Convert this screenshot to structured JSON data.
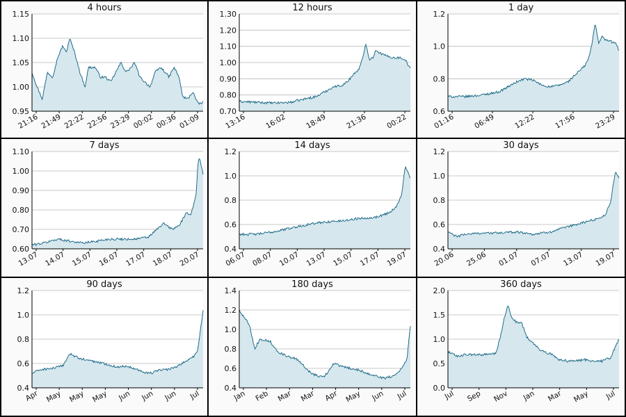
{
  "colors": {
    "line": "#0d5f7e",
    "fill": "#d6e7ee",
    "grid": "#b8b8b8",
    "frame": "#000000"
  },
  "chart_data": [
    {
      "type": "area",
      "title": "4 hours",
      "ylim": [
        0.95,
        1.15
      ],
      "yticks": [
        "0.95",
        "1.00",
        "1.05",
        "1.10",
        "1.15"
      ],
      "xticks": [
        "21:16",
        "21:49",
        "22:22",
        "22:56",
        "23:29",
        "00:02",
        "00:36",
        "01:09"
      ],
      "anchors": [
        [
          0,
          1.03
        ],
        [
          0.03,
          1.0
        ],
        [
          0.06,
          0.975
        ],
        [
          0.09,
          1.03
        ],
        [
          0.12,
          1.02
        ],
        [
          0.15,
          1.06
        ],
        [
          0.18,
          1.085
        ],
        [
          0.2,
          1.07
        ],
        [
          0.22,
          1.1
        ],
        [
          0.25,
          1.07
        ],
        [
          0.28,
          1.03
        ],
        [
          0.31,
          1.0
        ],
        [
          0.33,
          1.04
        ],
        [
          0.37,
          1.04
        ],
        [
          0.4,
          1.02
        ],
        [
          0.43,
          1.02
        ],
        [
          0.46,
          1.01
        ],
        [
          0.49,
          1.03
        ],
        [
          0.52,
          1.05
        ],
        [
          0.55,
          1.03
        ],
        [
          0.58,
          1.04
        ],
        [
          0.6,
          1.05
        ],
        [
          0.63,
          1.02
        ],
        [
          0.66,
          1.01
        ],
        [
          0.69,
          1.0
        ],
        [
          0.72,
          1.03
        ],
        [
          0.75,
          1.04
        ],
        [
          0.78,
          1.03
        ],
        [
          0.8,
          1.02
        ],
        [
          0.83,
          1.04
        ],
        [
          0.86,
          1.02
        ],
        [
          0.88,
          0.98
        ],
        [
          0.91,
          0.975
        ],
        [
          0.94,
          0.99
        ],
        [
          0.97,
          0.965
        ],
        [
          1.0,
          0.968
        ]
      ]
    },
    {
      "type": "area",
      "title": "12 hours",
      "ylim": [
        0.7,
        1.3
      ],
      "yticks": [
        "0.70",
        "0.80",
        "0.90",
        "1.00",
        "1.10",
        "1.20",
        "1.30"
      ],
      "xticks": [
        "13:16",
        "16:02",
        "18:49",
        "21:36",
        "00:22"
      ],
      "anchors": [
        [
          0,
          0.76
        ],
        [
          0.1,
          0.755
        ],
        [
          0.2,
          0.75
        ],
        [
          0.3,
          0.755
        ],
        [
          0.4,
          0.78
        ],
        [
          0.45,
          0.79
        ],
        [
          0.5,
          0.82
        ],
        [
          0.55,
          0.85
        ],
        [
          0.6,
          0.86
        ],
        [
          0.63,
          0.88
        ],
        [
          0.67,
          0.93
        ],
        [
          0.7,
          0.96
        ],
        [
          0.72,
          1.02
        ],
        [
          0.74,
          1.12
        ],
        [
          0.76,
          1.02
        ],
        [
          0.78,
          1.03
        ],
        [
          0.8,
          1.08
        ],
        [
          0.82,
          1.06
        ],
        [
          0.84,
          1.05
        ],
        [
          0.86,
          1.04
        ],
        [
          0.9,
          1.03
        ],
        [
          0.94,
          1.03
        ],
        [
          0.97,
          1.02
        ],
        [
          1.0,
          0.96
        ]
      ]
    },
    {
      "type": "area",
      "title": "1 day",
      "ylim": [
        0.6,
        1.2
      ],
      "yticks": [
        "0.6",
        "0.8",
        "1.0",
        "1.2"
      ],
      "xticks": [
        "01:16",
        "06:49",
        "12:22",
        "17:56",
        "23:29"
      ],
      "anchors": [
        [
          0,
          0.69
        ],
        [
          0.1,
          0.69
        ],
        [
          0.2,
          0.7
        ],
        [
          0.3,
          0.72
        ],
        [
          0.35,
          0.75
        ],
        [
          0.4,
          0.78
        ],
        [
          0.45,
          0.8
        ],
        [
          0.5,
          0.79
        ],
        [
          0.55,
          0.76
        ],
        [
          0.6,
          0.75
        ],
        [
          0.65,
          0.76
        ],
        [
          0.7,
          0.78
        ],
        [
          0.75,
          0.83
        ],
        [
          0.8,
          0.88
        ],
        [
          0.82,
          0.92
        ],
        [
          0.84,
          1.0
        ],
        [
          0.86,
          1.15
        ],
        [
          0.88,
          1.02
        ],
        [
          0.9,
          1.06
        ],
        [
          0.92,
          1.04
        ],
        [
          0.95,
          1.03
        ],
        [
          0.98,
          1.02
        ],
        [
          1.0,
          0.97
        ]
      ]
    },
    {
      "type": "area",
      "title": "7 days",
      "ylim": [
        0.6,
        1.1
      ],
      "yticks": [
        "0.60",
        "0.70",
        "0.80",
        "0.90",
        "1.00",
        "1.10"
      ],
      "xticks": [
        "13.07",
        "14.07",
        "15.07",
        "16.07",
        "17.07",
        "18.07",
        "20.07"
      ],
      "anchors": [
        [
          0,
          0.62
        ],
        [
          0.07,
          0.63
        ],
        [
          0.15,
          0.65
        ],
        [
          0.22,
          0.64
        ],
        [
          0.3,
          0.63
        ],
        [
          0.38,
          0.64
        ],
        [
          0.45,
          0.65
        ],
        [
          0.52,
          0.65
        ],
        [
          0.6,
          0.65
        ],
        [
          0.68,
          0.66
        ],
        [
          0.73,
          0.7
        ],
        [
          0.77,
          0.73
        ],
        [
          0.82,
          0.7
        ],
        [
          0.86,
          0.72
        ],
        [
          0.9,
          0.78
        ],
        [
          0.93,
          0.78
        ],
        [
          0.96,
          0.88
        ],
        [
          0.97,
          1.05
        ],
        [
          0.98,
          1.07
        ],
        [
          1.0,
          0.98
        ]
      ]
    },
    {
      "type": "area",
      "title": "14 days",
      "ylim": [
        0.4,
        1.2
      ],
      "yticks": [
        "0.4",
        "0.6",
        "0.8",
        "1.0",
        "1.2"
      ],
      "xticks": [
        "06.07",
        "08.07",
        "10.07",
        "13.07",
        "15.07",
        "17.07",
        "19.07"
      ],
      "anchors": [
        [
          0,
          0.52
        ],
        [
          0.1,
          0.52
        ],
        [
          0.2,
          0.54
        ],
        [
          0.3,
          0.57
        ],
        [
          0.4,
          0.6
        ],
        [
          0.5,
          0.62
        ],
        [
          0.6,
          0.63
        ],
        [
          0.7,
          0.65
        ],
        [
          0.8,
          0.66
        ],
        [
          0.88,
          0.7
        ],
        [
          0.92,
          0.75
        ],
        [
          0.95,
          0.85
        ],
        [
          0.97,
          1.08
        ],
        [
          1.0,
          0.98
        ]
      ]
    },
    {
      "type": "area",
      "title": "30 days",
      "ylim": [
        0.4,
        1.2
      ],
      "yticks": [
        "0.4",
        "0.6",
        "0.8",
        "1.0",
        "1.2"
      ],
      "xticks": [
        "20.06",
        "25.06",
        "01.07",
        "07.07",
        "13.07",
        "19.07"
      ],
      "anchors": [
        [
          0,
          0.54
        ],
        [
          0.05,
          0.5
        ],
        [
          0.1,
          0.52
        ],
        [
          0.2,
          0.53
        ],
        [
          0.3,
          0.53
        ],
        [
          0.4,
          0.54
        ],
        [
          0.5,
          0.52
        ],
        [
          0.6,
          0.54
        ],
        [
          0.7,
          0.58
        ],
        [
          0.8,
          0.62
        ],
        [
          0.88,
          0.65
        ],
        [
          0.92,
          0.68
        ],
        [
          0.95,
          0.78
        ],
        [
          0.98,
          1.04
        ],
        [
          1.0,
          0.98
        ]
      ]
    },
    {
      "type": "area",
      "title": "90 days",
      "ylim": [
        0.4,
        1.2
      ],
      "yticks": [
        "0.4",
        "0.6",
        "0.8",
        "1.0",
        "1.2"
      ],
      "xticks": [
        "Apr",
        "May",
        "May",
        "May",
        "Jun",
        "Jun",
        "Jun",
        "Jul"
      ],
      "anchors": [
        [
          0,
          0.52
        ],
        [
          0.05,
          0.55
        ],
        [
          0.12,
          0.56
        ],
        [
          0.18,
          0.58
        ],
        [
          0.22,
          0.68
        ],
        [
          0.28,
          0.64
        ],
        [
          0.35,
          0.62
        ],
        [
          0.42,
          0.6
        ],
        [
          0.5,
          0.57
        ],
        [
          0.55,
          0.58
        ],
        [
          0.6,
          0.56
        ],
        [
          0.65,
          0.53
        ],
        [
          0.7,
          0.52
        ],
        [
          0.75,
          0.55
        ],
        [
          0.8,
          0.55
        ],
        [
          0.85,
          0.58
        ],
        [
          0.9,
          0.62
        ],
        [
          0.95,
          0.66
        ],
        [
          0.97,
          0.72
        ],
        [
          1.0,
          1.04
        ]
      ]
    },
    {
      "type": "area",
      "title": "180 days",
      "ylim": [
        0.4,
        1.4
      ],
      "yticks": [
        "0.4",
        "0.6",
        "0.8",
        "1.0",
        "1.2",
        "1.4"
      ],
      "xticks": [
        "Jan",
        "Feb",
        "Mar",
        "Mar",
        "Apr",
        "May",
        "Jun",
        "Jul"
      ],
      "anchors": [
        [
          0,
          1.2
        ],
        [
          0.03,
          1.12
        ],
        [
          0.06,
          1.05
        ],
        [
          0.09,
          0.8
        ],
        [
          0.12,
          0.9
        ],
        [
          0.18,
          0.88
        ],
        [
          0.22,
          0.78
        ],
        [
          0.28,
          0.72
        ],
        [
          0.33,
          0.7
        ],
        [
          0.38,
          0.62
        ],
        [
          0.42,
          0.55
        ],
        [
          0.46,
          0.52
        ],
        [
          0.5,
          0.52
        ],
        [
          0.55,
          0.65
        ],
        [
          0.6,
          0.62
        ],
        [
          0.65,
          0.6
        ],
        [
          0.7,
          0.58
        ],
        [
          0.75,
          0.55
        ],
        [
          0.8,
          0.52
        ],
        [
          0.85,
          0.5
        ],
        [
          0.9,
          0.52
        ],
        [
          0.95,
          0.6
        ],
        [
          0.98,
          0.7
        ],
        [
          1.0,
          1.04
        ]
      ]
    },
    {
      "type": "area",
      "title": "360 days",
      "ylim": [
        0.0,
        2.0
      ],
      "yticks": [
        "0.0",
        "0.5",
        "1.0",
        "1.5",
        "2.0"
      ],
      "xticks": [
        "Jul",
        "Sep",
        "Nov",
        "Jan",
        "Mar",
        "May",
        "Jul"
      ],
      "anchors": [
        [
          0,
          0.75
        ],
        [
          0.05,
          0.65
        ],
        [
          0.1,
          0.68
        ],
        [
          0.2,
          0.68
        ],
        [
          0.28,
          0.7
        ],
        [
          0.31,
          1.1
        ],
        [
          0.33,
          1.45
        ],
        [
          0.35,
          1.7
        ],
        [
          0.37,
          1.45
        ],
        [
          0.4,
          1.35
        ],
        [
          0.43,
          1.35
        ],
        [
          0.46,
          1.05
        ],
        [
          0.5,
          0.9
        ],
        [
          0.55,
          0.75
        ],
        [
          0.6,
          0.7
        ],
        [
          0.65,
          0.58
        ],
        [
          0.7,
          0.55
        ],
        [
          0.75,
          0.55
        ],
        [
          0.8,
          0.58
        ],
        [
          0.85,
          0.55
        ],
        [
          0.9,
          0.55
        ],
        [
          0.95,
          0.62
        ],
        [
          1.0,
          1.0
        ]
      ]
    }
  ]
}
